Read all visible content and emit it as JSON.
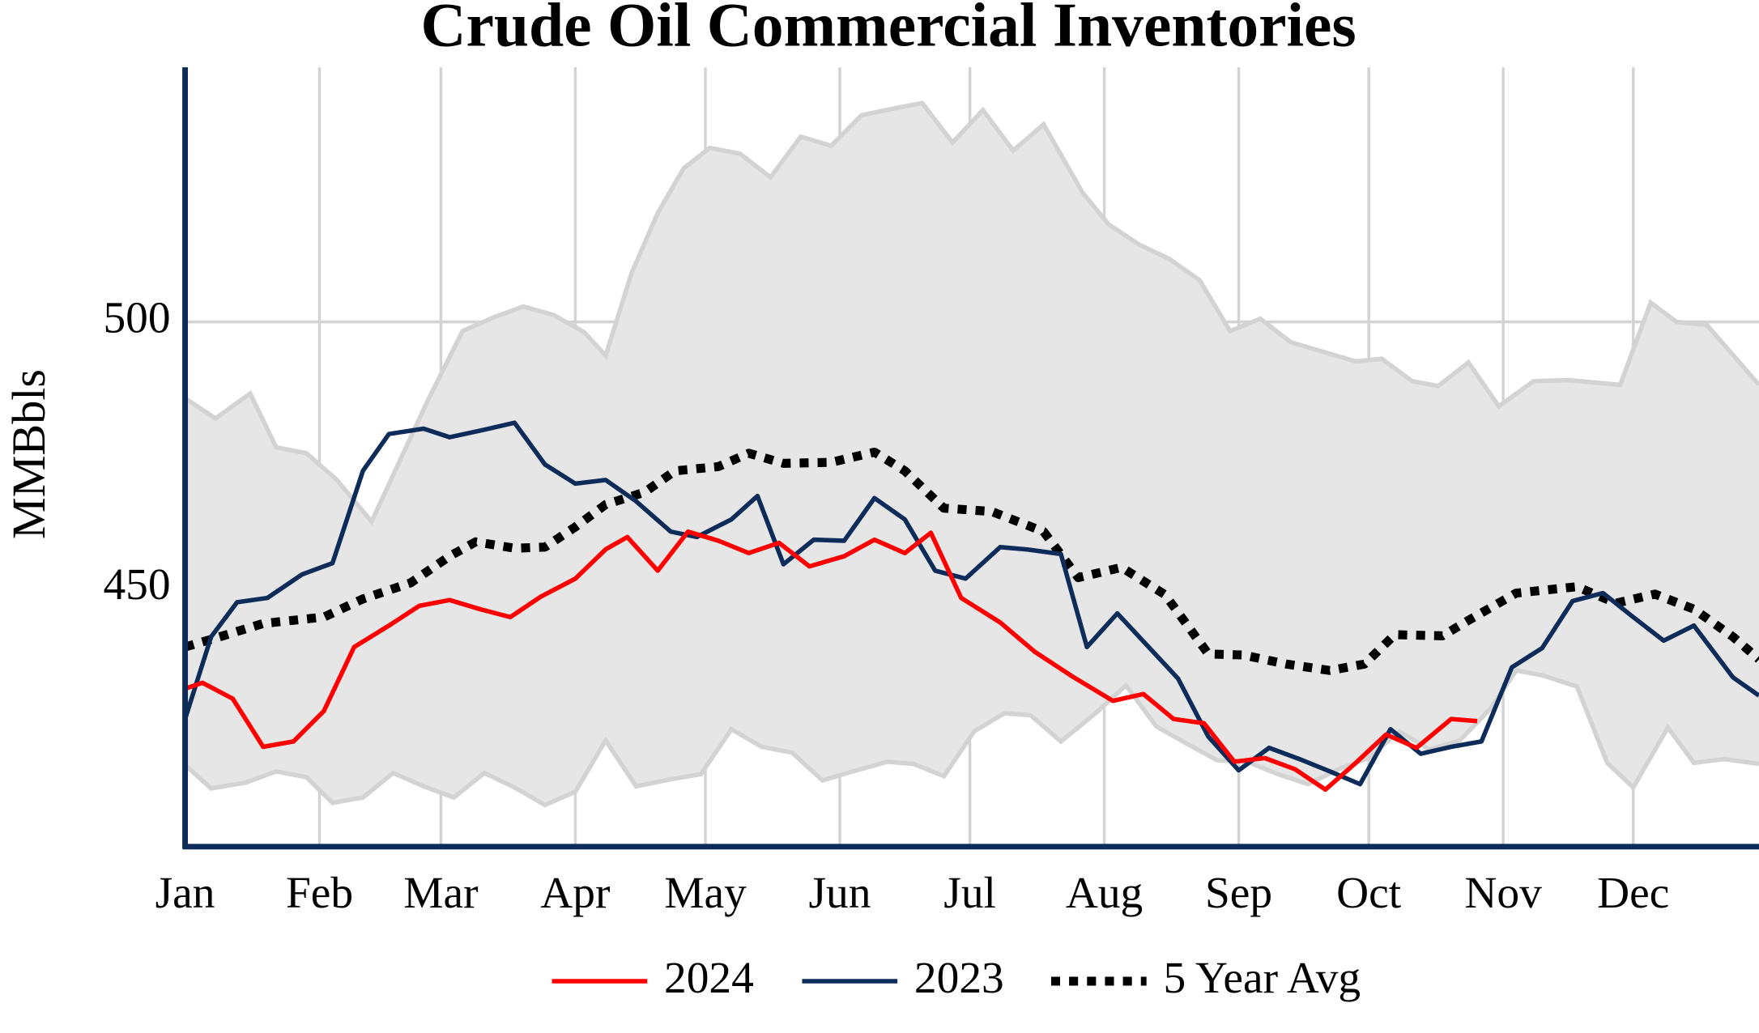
{
  "chart_data": {
    "type": "line",
    "title": "Crude Oil Commercial Inventories",
    "y_label": "MMBbls",
    "xlim": [
      1,
      364
    ],
    "ylim": [
      401.7,
      547.7
    ],
    "yticks": [
      450,
      500
    ],
    "xticks": [
      {
        "value": 1,
        "label": "Jan"
      },
      {
        "value": 32,
        "label": "Feb"
      },
      {
        "value": 60,
        "label": "Mar"
      },
      {
        "value": 91,
        "label": "Apr"
      },
      {
        "value": 121,
        "label": "May"
      },
      {
        "value": 152,
        "label": "Jun"
      },
      {
        "value": 182,
        "label": "Jul"
      },
      {
        "value": 213,
        "label": "Aug"
      },
      {
        "value": 244,
        "label": "Sep"
      },
      {
        "value": 274,
        "label": "Oct"
      },
      {
        "value": 305,
        "label": "Nov"
      },
      {
        "value": 335,
        "label": "Dec"
      }
    ],
    "grid": true,
    "legend": "bottom",
    "band": {
      "color": "#e6e6e6",
      "edge_color": "#d3d3d3",
      "x_upper": [
        1,
        8,
        16,
        22,
        29,
        36,
        44,
        57,
        65,
        72,
        79,
        86,
        93,
        98,
        104,
        110,
        116,
        122,
        129,
        136,
        143,
        150,
        157,
        164,
        171,
        178,
        185,
        192,
        199,
        208,
        214,
        221,
        228,
        235,
        242,
        249,
        256,
        263,
        271,
        277,
        284,
        290,
        297,
        304,
        312,
        320,
        332,
        339,
        345,
        352,
        364
      ],
      "upper": [
        485.7,
        481.9,
        486.6,
        476.5,
        475.4,
        470.4,
        462.6,
        485.3,
        498.3,
        500.8,
        502.9,
        501.3,
        498.1,
        493.7,
        509.2,
        520.4,
        528.8,
        532.6,
        531.5,
        527.1,
        534.7,
        533.0,
        538.7,
        539.9,
        541.0,
        533.6,
        539.7,
        532.1,
        537.0,
        524.2,
        518.3,
        514.5,
        511.8,
        507.8,
        498.3,
        500.6,
        496.2,
        494.5,
        492.6,
        493.1,
        488.9,
        488.0,
        492.4,
        484.2,
        488.9,
        489.1,
        488.2,
        503.6,
        500.0,
        499.4,
        488.2
      ],
      "x_lower": [
        1,
        7,
        15,
        22,
        29,
        35,
        42,
        49,
        56,
        63,
        70,
        77,
        84,
        91,
        98,
        105,
        113,
        120,
        127,
        134,
        141,
        148,
        155,
        163,
        169,
        176,
        183,
        190,
        196,
        203,
        211,
        218,
        225,
        232,
        239,
        246,
        253,
        260,
        267,
        274,
        281,
        288,
        295,
        302,
        308,
        314,
        322,
        329,
        335,
        343,
        349,
        356,
        364
      ],
      "lower": [
        417.0,
        412.6,
        413.7,
        415.8,
        414.7,
        409.9,
        410.9,
        415.5,
        413.0,
        410.9,
        415.5,
        412.8,
        409.5,
        412.0,
        421.6,
        413.0,
        414.3,
        415.3,
        423.7,
        420.4,
        419.3,
        414.1,
        415.8,
        417.6,
        417.2,
        414.9,
        423.3,
        426.7,
        426.3,
        421.4,
        426.7,
        431.9,
        424.2,
        421.0,
        417.9,
        417.6,
        415.3,
        413.4,
        416.2,
        418.3,
        423.3,
        419.9,
        421.6,
        427.5,
        434.7,
        433.8,
        431.7,
        417.4,
        412.8,
        424.0,
        417.4,
        418.1,
        417.2
      ]
    },
    "series": [
      {
        "name": "2024",
        "color": "#ff0000",
        "style": "solid",
        "x": [
          1,
          5,
          12,
          19,
          26,
          33,
          40,
          48,
          55,
          62,
          69,
          76,
          83,
          91,
          98,
          103,
          110,
          117,
          124,
          131,
          138,
          145,
          153,
          160,
          167,
          173,
          180,
          189,
          197,
          206,
          215,
          222,
          229,
          236,
          243,
          250,
          257,
          264,
          271,
          278,
          285,
          293,
          299
        ],
        "values": [
          431.3,
          432.4,
          429.4,
          420.4,
          421.4,
          427.1,
          439.1,
          443.1,
          446.8,
          447.9,
          446.2,
          444.7,
          448.5,
          451.9,
          457.4,
          459.7,
          453.4,
          460.7,
          459.0,
          456.7,
          458.6,
          454.2,
          456.1,
          459.2,
          456.7,
          460.5,
          448.3,
          443.7,
          438.2,
          433.4,
          429.0,
          430.3,
          425.6,
          424.8,
          417.6,
          418.3,
          416.2,
          412.4,
          417.4,
          422.7,
          420.2,
          425.6,
          425.2
        ]
      },
      {
        "name": "2023",
        "color": "#0d2c5a",
        "style": "solid",
        "x": [
          1,
          7,
          13,
          20,
          28,
          35,
          42,
          48,
          56,
          62,
          70,
          77,
          84,
          91,
          98,
          105,
          113,
          119,
          127,
          133,
          139,
          146,
          153,
          160,
          167,
          174,
          181,
          189,
          195,
          203,
          209,
          216,
          230,
          237,
          244,
          251,
          258,
          265,
          272,
          279,
          286,
          293,
          300,
          307,
          314,
          321,
          328,
          335,
          342,
          349,
          358,
          364
        ],
        "values": [
          425.6,
          441.0,
          447.5,
          448.3,
          452.7,
          454.8,
          472.1,
          479.0,
          480.0,
          478.4,
          479.8,
          481.1,
          473.3,
          469.7,
          470.4,
          466.4,
          460.7,
          459.7,
          463.0,
          467.4,
          454.6,
          459.2,
          459.0,
          467.0,
          463.0,
          453.4,
          451.9,
          457.8,
          457.4,
          456.5,
          439.1,
          445.4,
          433.2,
          422.3,
          416.0,
          420.2,
          418.1,
          415.8,
          413.4,
          423.7,
          419.1,
          420.4,
          421.4,
          435.3,
          438.9,
          447.7,
          449.2,
          444.7,
          440.3,
          443.1,
          433.4,
          430.0
        ]
      },
      {
        "name": "5 Year Avg",
        "color": "#000000",
        "style": "dotted",
        "x": [
          1,
          9,
          19,
          33,
          42,
          53,
          62,
          68,
          77,
          84,
          91,
          98,
          107,
          114,
          124,
          131,
          139,
          150,
          160,
          167,
          176,
          187,
          199,
          207,
          217,
          227,
          237,
          245,
          255,
          265,
          273,
          280,
          291,
          297,
          308,
          322,
          331,
          340,
          349,
          358,
          364
        ],
        "values": [
          439.1,
          441.0,
          443.5,
          444.7,
          448.1,
          451.1,
          456.1,
          458.8,
          457.6,
          457.8,
          461.6,
          465.8,
          468.1,
          472.1,
          472.9,
          475.4,
          473.5,
          473.7,
          475.6,
          472.1,
          465.1,
          464.5,
          460.7,
          452.1,
          454.0,
          448.9,
          437.8,
          437.6,
          435.9,
          434.7,
          435.9,
          441.4,
          441.2,
          444.1,
          449.2,
          450.4,
          447.3,
          449.0,
          446.2,
          441.0,
          436.8
        ]
      }
    ]
  }
}
